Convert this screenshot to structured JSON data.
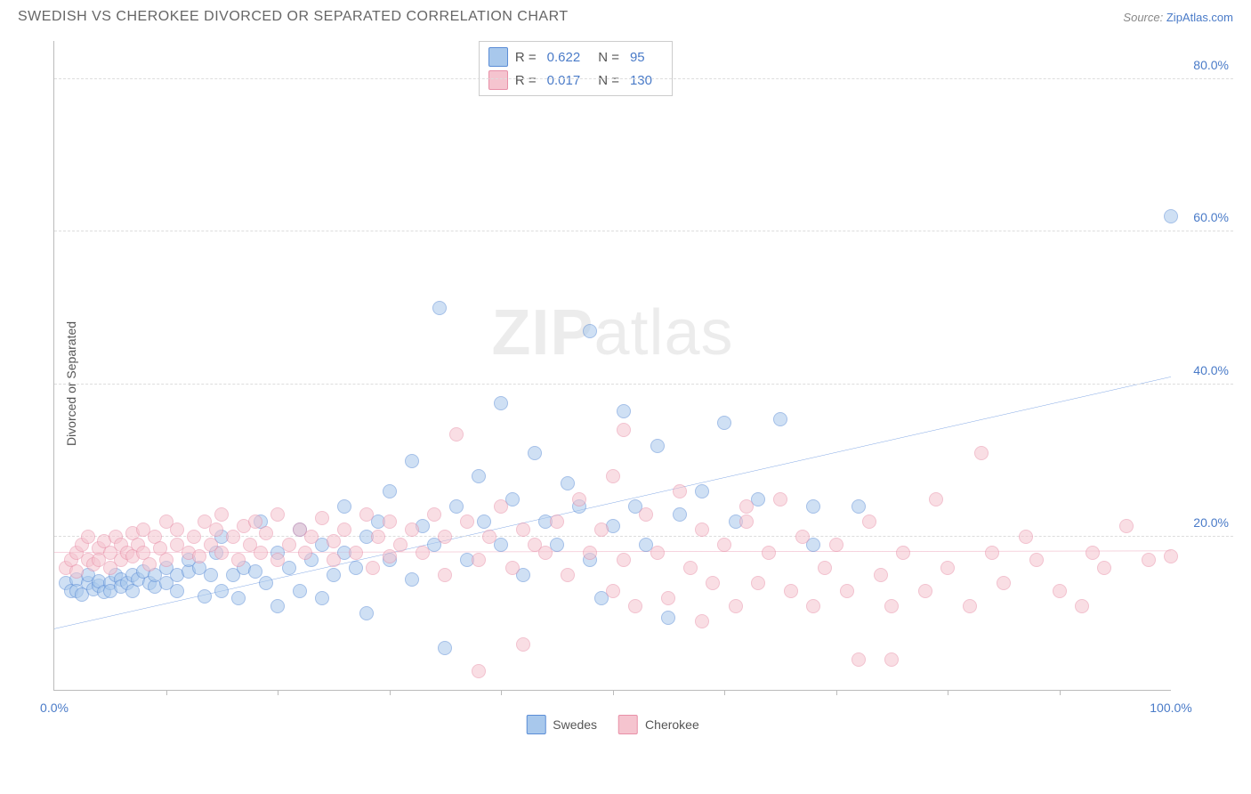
{
  "title": "SWEDISH VS CHEROKEE DIVORCED OR SEPARATED CORRELATION CHART",
  "source_label": "Source:",
  "source_link": "ZipAtlas.com",
  "ylabel": "Divorced or Separated",
  "watermark": {
    "bold": "ZIP",
    "rest": "atlas"
  },
  "chart": {
    "type": "scatter",
    "xlim": [
      0,
      100
    ],
    "ylim": [
      0,
      85
    ],
    "x_label_min": "0.0%",
    "x_label_max": "100.0%",
    "x_ticks": [
      10,
      20,
      30,
      40,
      50,
      60,
      70,
      80,
      90
    ],
    "y_ticks": [
      {
        "v": 20,
        "label": "20.0%"
      },
      {
        "v": 40,
        "label": "40.0%"
      },
      {
        "v": 60,
        "label": "60.0%"
      },
      {
        "v": 80,
        "label": "80.0%"
      }
    ],
    "grid_color": "#dddddd",
    "axis_color": "#bbbbbb",
    "background": "#ffffff",
    "point_radius": 8,
    "point_opacity": 0.55,
    "series": [
      {
        "name": "Swedes",
        "color_fill": "#a8c8ec",
        "color_stroke": "#5b8dd6",
        "R": "0.622",
        "N": "95",
        "trend": {
          "x1": 0,
          "y1": 8,
          "x2": 100,
          "y2": 41,
          "color": "#2b6cd4",
          "width": 2
        },
        "points": [
          [
            1,
            14
          ],
          [
            1.5,
            13
          ],
          [
            2,
            14.5
          ],
          [
            2,
            13
          ],
          [
            2.5,
            12.5
          ],
          [
            3,
            14
          ],
          [
            3,
            15
          ],
          [
            3.5,
            13.2
          ],
          [
            4,
            13.6
          ],
          [
            4,
            14.2
          ],
          [
            4.5,
            12.8
          ],
          [
            5,
            14
          ],
          [
            5,
            13
          ],
          [
            5.5,
            15
          ],
          [
            6,
            14.5
          ],
          [
            6,
            13.5
          ],
          [
            6.5,
            14
          ],
          [
            7,
            15
          ],
          [
            7,
            13
          ],
          [
            7.5,
            14.5
          ],
          [
            8,
            15.5
          ],
          [
            8.5,
            14
          ],
          [
            9,
            13.5
          ],
          [
            9,
            15
          ],
          [
            10,
            14
          ],
          [
            10,
            16
          ],
          [
            11,
            15
          ],
          [
            11,
            13
          ],
          [
            12,
            15.5
          ],
          [
            12,
            17
          ],
          [
            13,
            16
          ],
          [
            13.5,
            12.2
          ],
          [
            14,
            15
          ],
          [
            14.5,
            18
          ],
          [
            15,
            13
          ],
          [
            15,
            20
          ],
          [
            16,
            15
          ],
          [
            16.5,
            12
          ],
          [
            17,
            16
          ],
          [
            18,
            15.5
          ],
          [
            18.5,
            22
          ],
          [
            19,
            14
          ],
          [
            20,
            18
          ],
          [
            20,
            11
          ],
          [
            21,
            16
          ],
          [
            22,
            21
          ],
          [
            22,
            13
          ],
          [
            23,
            17
          ],
          [
            24,
            12
          ],
          [
            24,
            19
          ],
          [
            25,
            15
          ],
          [
            26,
            18
          ],
          [
            26,
            24
          ],
          [
            27,
            16
          ],
          [
            28,
            10
          ],
          [
            28,
            20
          ],
          [
            29,
            22
          ],
          [
            30,
            17
          ],
          [
            30,
            26
          ],
          [
            32,
            14.5
          ],
          [
            32,
            30
          ],
          [
            33,
            21.5
          ],
          [
            34,
            19
          ],
          [
            34.5,
            50
          ],
          [
            35,
            5.5
          ],
          [
            36,
            24
          ],
          [
            37,
            17
          ],
          [
            38,
            28
          ],
          [
            38.5,
            22
          ],
          [
            40,
            19
          ],
          [
            40,
            37.5
          ],
          [
            41,
            25
          ],
          [
            42,
            15
          ],
          [
            43,
            31
          ],
          [
            44,
            22
          ],
          [
            45,
            19
          ],
          [
            46,
            27
          ],
          [
            47,
            24
          ],
          [
            48,
            17
          ],
          [
            48,
            47
          ],
          [
            50,
            21.5
          ],
          [
            51,
            36.5
          ],
          [
            52,
            24
          ],
          [
            53,
            19
          ],
          [
            54,
            32
          ],
          [
            56,
            23
          ],
          [
            58,
            26
          ],
          [
            60,
            35
          ],
          [
            61,
            22
          ],
          [
            63,
            25
          ],
          [
            65,
            35.5
          ],
          [
            68,
            19
          ],
          [
            68,
            24
          ],
          [
            72,
            24
          ],
          [
            49,
            12
          ],
          [
            55,
            9.5
          ],
          [
            100,
            62
          ]
        ]
      },
      {
        "name": "Cherokee",
        "color_fill": "#f5c4cf",
        "color_stroke": "#e890a8",
        "R": "0.017",
        "N": "130",
        "trend": {
          "x1": 0,
          "y1": 18,
          "x2": 100,
          "y2": 18.2,
          "color": "#e36b8e",
          "width": 2
        },
        "points": [
          [
            1,
            16
          ],
          [
            1.5,
            17
          ],
          [
            2,
            18
          ],
          [
            2,
            15.5
          ],
          [
            2.5,
            19
          ],
          [
            3,
            17
          ],
          [
            3,
            20
          ],
          [
            3.5,
            16.5
          ],
          [
            4,
            18.5
          ],
          [
            4,
            17
          ],
          [
            4.5,
            19.5
          ],
          [
            5,
            16
          ],
          [
            5,
            18
          ],
          [
            5.5,
            20
          ],
          [
            6,
            17
          ],
          [
            6,
            19
          ],
          [
            6.5,
            18
          ],
          [
            7,
            20.5
          ],
          [
            7,
            17.5
          ],
          [
            7.5,
            19
          ],
          [
            8,
            21
          ],
          [
            8,
            18
          ],
          [
            8.5,
            16.5
          ],
          [
            9,
            20
          ],
          [
            9.5,
            18.5
          ],
          [
            10,
            22
          ],
          [
            10,
            17
          ],
          [
            11,
            19
          ],
          [
            11,
            21
          ],
          [
            12,
            18
          ],
          [
            12.5,
            20
          ],
          [
            13,
            17.5
          ],
          [
            13.5,
            22
          ],
          [
            14,
            19
          ],
          [
            14.5,
            21
          ],
          [
            15,
            18
          ],
          [
            15,
            23
          ],
          [
            16,
            20
          ],
          [
            16.5,
            17
          ],
          [
            17,
            21.5
          ],
          [
            17.5,
            19
          ],
          [
            18,
            22
          ],
          [
            18.5,
            18
          ],
          [
            19,
            20.5
          ],
          [
            20,
            17
          ],
          [
            20,
            23
          ],
          [
            21,
            19
          ],
          [
            22,
            21
          ],
          [
            22.5,
            18
          ],
          [
            23,
            20
          ],
          [
            24,
            22.5
          ],
          [
            25,
            17
          ],
          [
            25,
            19.5
          ],
          [
            26,
            21
          ],
          [
            27,
            18
          ],
          [
            28,
            23
          ],
          [
            28.5,
            16
          ],
          [
            29,
            20
          ],
          [
            30,
            17.5
          ],
          [
            30,
            22
          ],
          [
            31,
            19
          ],
          [
            32,
            21
          ],
          [
            33,
            18
          ],
          [
            34,
            23
          ],
          [
            35,
            15
          ],
          [
            35,
            20
          ],
          [
            36,
            33.5
          ],
          [
            37,
            22
          ],
          [
            38,
            17
          ],
          [
            38,
            2.5
          ],
          [
            39,
            20
          ],
          [
            40,
            24
          ],
          [
            41,
            16
          ],
          [
            42,
            21
          ],
          [
            42,
            6
          ],
          [
            43,
            19
          ],
          [
            44,
            18
          ],
          [
            45,
            22
          ],
          [
            46,
            15
          ],
          [
            47,
            25
          ],
          [
            48,
            18
          ],
          [
            49,
            21
          ],
          [
            50,
            28
          ],
          [
            50,
            13
          ],
          [
            51,
            17
          ],
          [
            52,
            11
          ],
          [
            53,
            23
          ],
          [
            54,
            18
          ],
          [
            55,
            12
          ],
          [
            56,
            26
          ],
          [
            57,
            16
          ],
          [
            58,
            21
          ],
          [
            58,
            9
          ],
          [
            59,
            14
          ],
          [
            60,
            19
          ],
          [
            61,
            11
          ],
          [
            62,
            22
          ],
          [
            63,
            14
          ],
          [
            64,
            18
          ],
          [
            65,
            25
          ],
          [
            66,
            13
          ],
          [
            67,
            20
          ],
          [
            68,
            11
          ],
          [
            69,
            16
          ],
          [
            70,
            19
          ],
          [
            71,
            13
          ],
          [
            72,
            4
          ],
          [
            73,
            22
          ],
          [
            74,
            15
          ],
          [
            75,
            11
          ],
          [
            76,
            18
          ],
          [
            78,
            13
          ],
          [
            79,
            25
          ],
          [
            80,
            16
          ],
          [
            82,
            11
          ],
          [
            83,
            31
          ],
          [
            84,
            18
          ],
          [
            85,
            14
          ],
          [
            87,
            20
          ],
          [
            88,
            17
          ],
          [
            90,
            13
          ],
          [
            92,
            11
          ],
          [
            93,
            18
          ],
          [
            94,
            16
          ],
          [
            96,
            21.5
          ],
          [
            98,
            17
          ],
          [
            100,
            17.5
          ],
          [
            51,
            34
          ],
          [
            75,
            4
          ],
          [
            62,
            24
          ]
        ]
      }
    ]
  },
  "bottom_legend": [
    {
      "label": "Swedes",
      "fill": "#a8c8ec",
      "stroke": "#5b8dd6"
    },
    {
      "label": "Cherokee",
      "fill": "#f5c4cf",
      "stroke": "#e890a8"
    }
  ]
}
